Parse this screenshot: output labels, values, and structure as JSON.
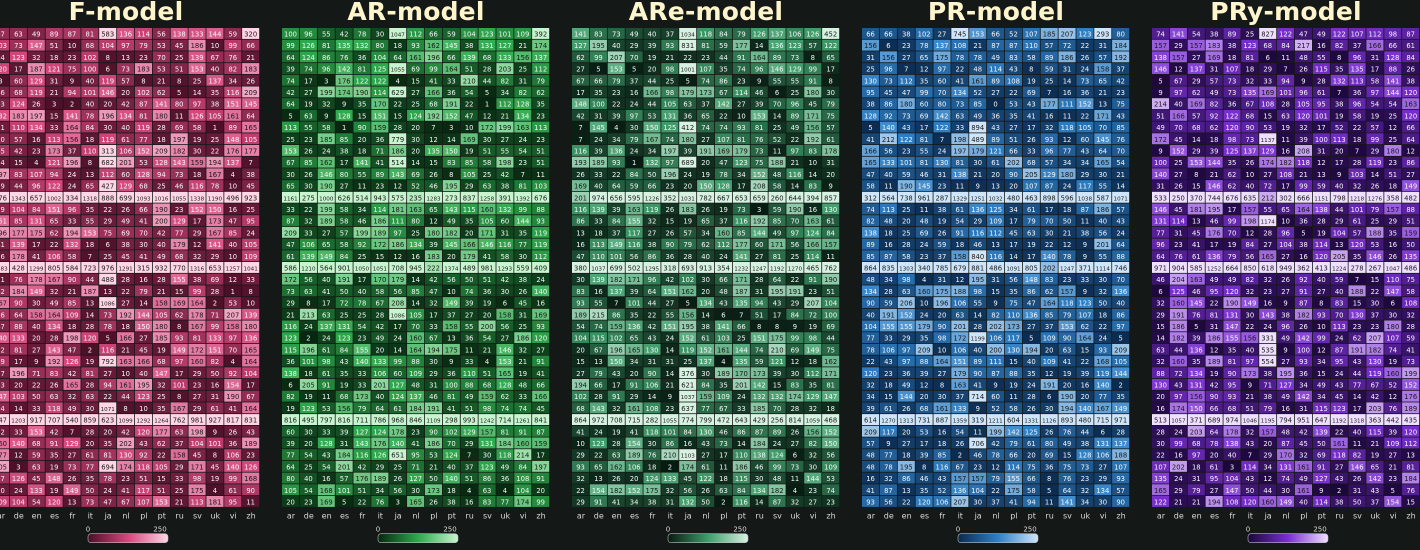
{
  "chart_data": {
    "type": "heatmap",
    "x_tick_labels": [
      "ar",
      "de",
      "en",
      "es",
      "fr",
      "it",
      "ja",
      "nl",
      "pl",
      "pt",
      "ru",
      "sv",
      "uk",
      "vi",
      "zh"
    ],
    "colorbar_ticks": [
      "0",
      "250"
    ],
    "panels": [
      {
        "title": "F-model",
        "colors": {
          "low": "#4a0f26",
          "mid": "#d4477d",
          "high": "#ffd6e5"
        }
      },
      {
        "title": "AR-model",
        "colors": {
          "low": "#06260f",
          "mid": "#2ea84c",
          "high": "#c8f5cf"
        }
      },
      {
        "title": "ARe-model",
        "colors": {
          "low": "#061a10",
          "mid": "#3f9c6a",
          "high": "#d8f2e2"
        }
      },
      {
        "title": "PR-model",
        "colors": {
          "low": "#0b2a4e",
          "mid": "#2f7fc4",
          "high": "#cfe6fa"
        }
      },
      {
        "title": "PRy-model",
        "colors": {
          "low": "#1a0638",
          "mid": "#7a2fd0",
          "high": "#f0e0ff"
        }
      }
    ],
    "grid_rows": 41,
    "grid_cols": 15,
    "value_range": [
      0,
      250
    ],
    "note_values": "per-cell counts are dense and only partially legible; rendered procedurally",
    "sample_rows": [
      [
        67,
        63,
        49,
        89,
        87,
        81,
        583,
        136,
        114,
        56,
        138,
        133,
        144,
        59,
        320
      ],
      [
        100,
        96,
        55,
        42,
        78,
        30,
        1047,
        112,
        66,
        59,
        104,
        123,
        101,
        109,
        392
      ],
      [
        141,
        83,
        73,
        49,
        40,
        37,
        1034,
        118,
        84,
        79,
        126,
        137,
        106,
        126,
        452
      ],
      [
        66,
        66,
        38,
        102,
        27,
        745,
        153,
        66,
        52,
        107,
        185,
        207,
        123,
        293,
        80
      ],
      [
        74,
        141,
        54,
        38,
        89,
        25,
        827,
        122,
        47,
        49,
        122,
        107,
        112,
        98,
        87
      ]
    ]
  }
}
